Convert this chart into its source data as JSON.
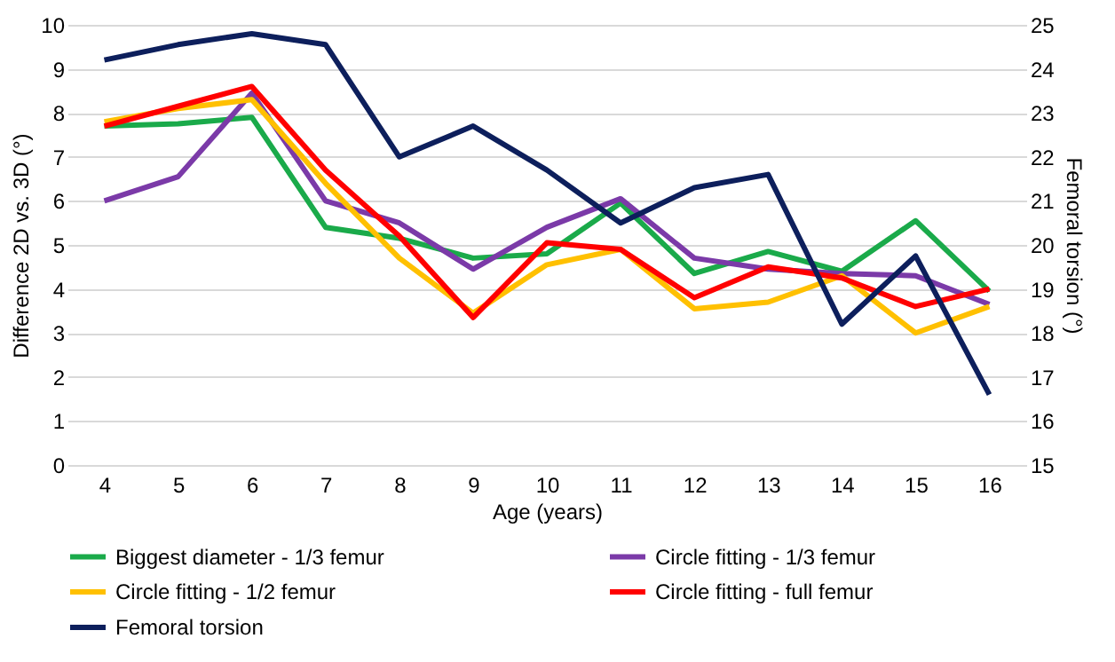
{
  "chart_data": {
    "type": "line",
    "xlabel": "Age (years)",
    "ylabel": "Difference 2D vs. 3D (°)",
    "y2label": "Femoral torsion (°)",
    "categories": [
      "4",
      "5",
      "6",
      "7",
      "8",
      "9",
      "10",
      "11",
      "12",
      "13",
      "14",
      "15",
      "16"
    ],
    "ylim": [
      0,
      10
    ],
    "yticks": [
      0,
      1,
      2,
      3,
      4,
      5,
      6,
      7,
      8,
      9,
      10
    ],
    "y2lim": [
      15,
      25
    ],
    "y2ticks": [
      15,
      16,
      17,
      18,
      19,
      20,
      21,
      22,
      23,
      24,
      25
    ],
    "grid": "y",
    "legend": "bottom",
    "line_style": "solid",
    "marker": "none",
    "series": [
      {
        "name": "Biggest diameter - 1/3 femur",
        "color": "#1aaa4a",
        "values": [
          7.7,
          7.75,
          7.9,
          5.4,
          5.15,
          4.7,
          4.8,
          5.95,
          4.35,
          4.85,
          4.4,
          5.55,
          3.95
        ]
      },
      {
        "name": "Circle fitting - 1/3 femur",
        "color": "#7b3aa8",
        "values": [
          6.0,
          6.55,
          8.45,
          6.0,
          5.5,
          4.45,
          5.4,
          6.05,
          4.7,
          4.45,
          4.35,
          4.3,
          3.65
        ]
      },
      {
        "name": "Circle fitting - 1/2 femur",
        "color": "#ffc000",
        "values": [
          7.8,
          8.1,
          8.3,
          6.4,
          4.7,
          3.45,
          4.55,
          4.9,
          3.55,
          3.7,
          4.3,
          3.0,
          3.6
        ]
      },
      {
        "name": "Circle fitting - full femur",
        "color": "#ff0000",
        "values": [
          7.7,
          8.15,
          8.6,
          6.7,
          5.2,
          3.35,
          5.05,
          4.9,
          3.8,
          4.5,
          4.25,
          3.6,
          4.0
        ]
      },
      {
        "name": "Femoral torsion",
        "color": "#0d1f5c",
        "axis": "y2",
        "values": [
          24.2,
          24.55,
          24.8,
          24.55,
          22.0,
          22.7,
          21.7,
          20.5,
          21.3,
          21.6,
          18.2,
          19.75,
          16.6
        ]
      }
    ]
  }
}
